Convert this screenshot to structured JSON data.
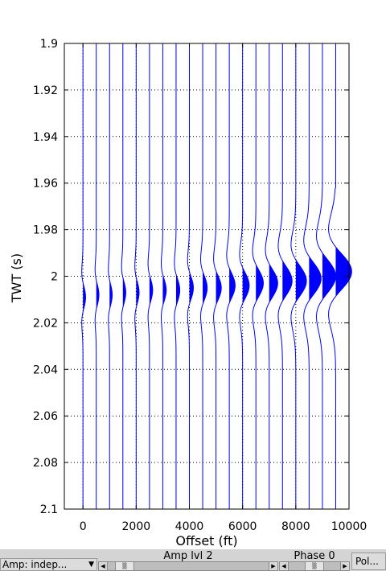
{
  "chart_data": {
    "type": "wiggle",
    "title": "",
    "xlabel": "Offset (ft)",
    "ylabel": "TWT (s)",
    "xlim": [
      -700,
      10000
    ],
    "ylim": [
      1.9,
      2.1
    ],
    "y_reversed": true,
    "grid": true,
    "x_ticks": [
      0,
      2000,
      4000,
      6000,
      8000,
      10000
    ],
    "x_tick_labels": [
      "0",
      "2000",
      "4000",
      "6000",
      "8000",
      "10000"
    ],
    "y_ticks": [
      1.9,
      1.92,
      1.94,
      1.96,
      1.98,
      2.0,
      2.02,
      2.04,
      2.06,
      2.08,
      2.1
    ],
    "y_tick_labels": [
      "1.9",
      "1.92",
      "1.94",
      "1.96",
      "1.98",
      "2",
      "2.02",
      "2.04",
      "2.06",
      "2.08",
      "2.1"
    ],
    "trace_color": "#0000ff",
    "trace_fill": "positive",
    "traces_offsets": [
      0,
      500,
      1000,
      1500,
      2000,
      2500,
      3000,
      3500,
      4000,
      4500,
      5000,
      5500,
      6000,
      6500,
      7000,
      7500,
      8000,
      8500,
      9000,
      9500
    ],
    "traces_peak_amplitude_ft": [
      100,
      100,
      100,
      110,
      110,
      120,
      130,
      140,
      150,
      170,
      200,
      220,
      250,
      280,
      320,
      360,
      400,
      450,
      500,
      600
    ],
    "traces_peak_time_s": [
      2.009,
      2.008,
      2.008,
      2.007,
      2.007,
      2.006,
      2.006,
      2.006,
      2.005,
      2.005,
      2.005,
      2.004,
      2.004,
      2.003,
      2.003,
      2.002,
      2.002,
      2.001,
      2.0,
      1.998
    ],
    "traces_wavelet_width_s": [
      0.009,
      0.009,
      0.009,
      0.0092,
      0.0093,
      0.0094,
      0.0095,
      0.0097,
      0.0099,
      0.0101,
      0.0104,
      0.0107,
      0.011,
      0.0114,
      0.0118,
      0.0123,
      0.0128,
      0.0134,
      0.0142,
      0.015
    ],
    "traces_support_start_s": [
      1.965,
      1.965,
      1.965,
      1.965,
      1.965,
      1.965,
      1.965,
      1.965,
      1.965,
      1.965,
      1.961,
      1.962,
      1.962,
      1.962,
      1.962,
      1.961,
      1.961,
      1.961,
      1.962,
      1.962
    ],
    "traces_support_end_s": [
      2.04,
      2.04,
      2.04,
      2.041,
      2.041,
      2.042,
      2.042,
      2.043,
      2.043,
      2.044,
      2.048,
      2.046,
      2.046,
      2.045,
      2.045,
      2.044,
      2.044,
      2.044,
      2.068,
      2.083
    ]
  },
  "controls": {
    "amp_select_value": "Amp: indep...",
    "amp_slider_label": "Amp lvl 2",
    "phase_slider_label": "Phase 0",
    "pol_button_label": "Pol..."
  }
}
